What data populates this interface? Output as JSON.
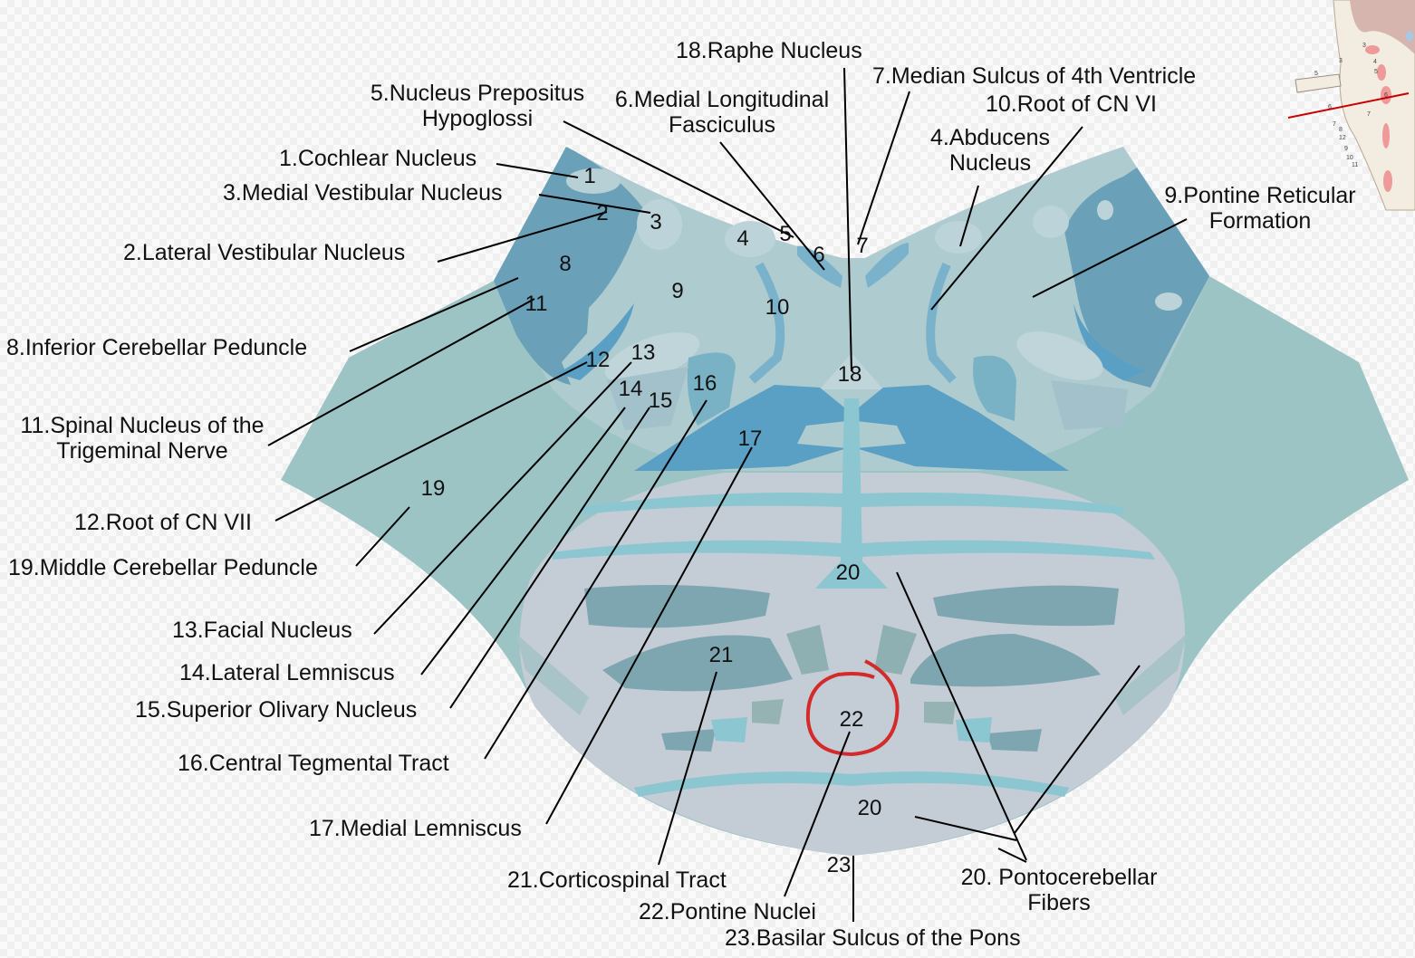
{
  "labels": {
    "l18": "18.Raphe Nucleus",
    "l7": "7.Median Sulcus of 4th Ventricle",
    "l5a": "5.Nucleus Prepositus",
    "l5b": "Hypoglossi",
    "l6a": "6.Medial Longitudinal",
    "l6b": "Fasciculus",
    "l10": "10.Root of CN VI",
    "l4a": "4.Abducens",
    "l4b": "Nucleus",
    "l1": "1.Cochlear Nucleus",
    "l3": "3.Medial Vestibular Nucleus",
    "l9a": "9.Pontine Reticular",
    "l9b": "Formation",
    "l2": "2.Lateral Vestibular Nucleus",
    "l8": "8.Inferior Cerebellar Peduncle",
    "l11a": "11.Spinal Nucleus of the",
    "l11b": "Trigeminal Nerve",
    "l12": "12.Root of CN VII",
    "l19": "19.Middle Cerebellar Peduncle",
    "l13": "13.Facial Nucleus",
    "l14": "14.Lateral Lemniscus",
    "l15": "15.Superior Olivary Nucleus",
    "l16": "16.Central Tegmental Tract",
    "l17": "17.Medial Lemniscus",
    "l21": "21.Corticospinal Tract",
    "l22": "22.Pontine Nuclei",
    "l23": "23.Basilar Sulcus of the Pons",
    "l20a": "20. Pontocerebellar",
    "l20b": "Fibers"
  },
  "numbers": {
    "n1": "1",
    "n2": "2",
    "n3": "3",
    "n4": "4",
    "n5": "5",
    "n6": "6",
    "n7": "7",
    "n8": "8",
    "n9": "9",
    "n10": "10",
    "n11": "11",
    "n12": "12",
    "n13": "13",
    "n14": "14",
    "n15": "15",
    "n16": "16",
    "n17": "17",
    "n18": "18",
    "n19": "19",
    "n20a": "20",
    "n21": "21",
    "n22": "22",
    "n20b": "20",
    "n23": "23"
  },
  "highlight": {
    "target": "22",
    "color": "#d42a2a"
  },
  "inset": {
    "labels": [
      "3",
      "4",
      "5",
      "6",
      "7",
      "3",
      "5",
      "6",
      "7",
      "8",
      "12",
      "9",
      "10",
      "11"
    ],
    "cut_line_color": "#cc0000"
  },
  "colors": {
    "outer": "#9cc4c5",
    "tegmentum": "#aecbcf",
    "peduncle": "#6aa1b8",
    "lemniscus": "#5a9fc4",
    "basilar": "#c4ccd5",
    "nuclei": "#7ea6b0",
    "fibers": "#8cc6d0"
  }
}
